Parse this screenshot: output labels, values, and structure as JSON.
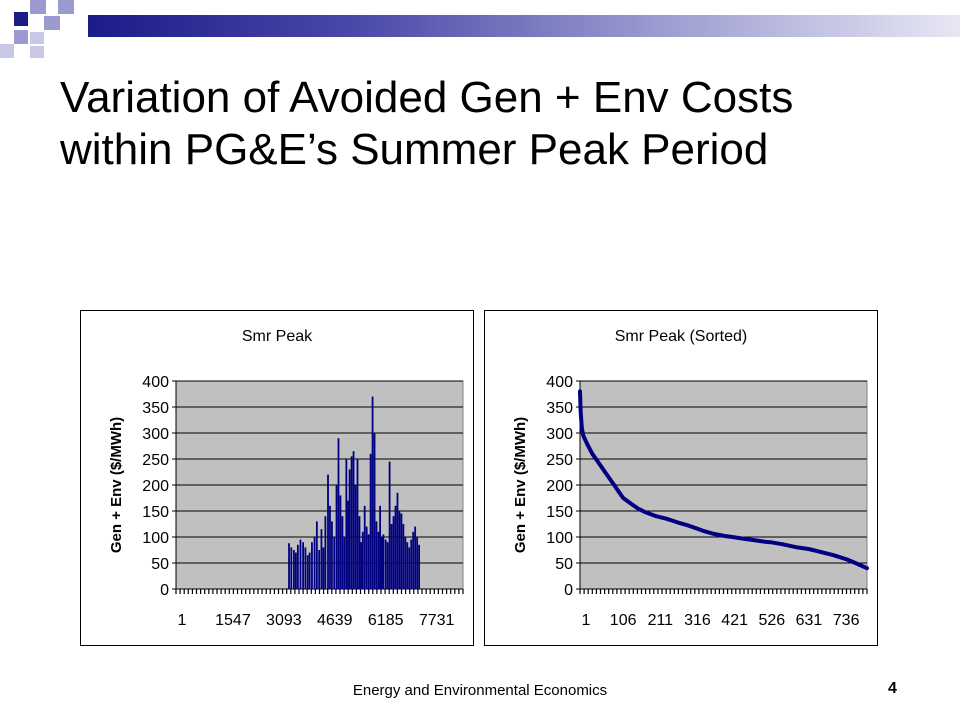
{
  "slide": {
    "title_line1": "Variation of Avoided Gen + Env Costs",
    "title_line2": "within PG&E’s Summer Peak Period",
    "footer": "Energy and Environmental Economics",
    "page_number": "4",
    "accent_dark": "#1b1b8a",
    "accent_light": "#9a9ad0"
  },
  "chart_data": [
    {
      "type": "bar",
      "title": "Smr Peak",
      "ylabel": "Gen + Env ($/MWh)",
      "xlabel": "",
      "ylim": [
        0,
        400
      ],
      "yticks": [
        0,
        50,
        100,
        150,
        200,
        250,
        300,
        350,
        400
      ],
      "xtick_labels": [
        "1",
        "1547",
        "3093",
        "4639",
        "6185",
        "7731"
      ],
      "x_range": [
        1,
        8760
      ],
      "grid": true,
      "plot_bg": "#c0c0c0",
      "bar_color": "#000080",
      "x": [
        3450,
        3520,
        3600,
        3660,
        3720,
        3800,
        3880,
        3950,
        4020,
        4080,
        4150,
        4230,
        4300,
        4370,
        4440,
        4500,
        4560,
        4640,
        4700,
        4760,
        4830,
        4900,
        4960,
        5020,
        5080,
        5140,
        5200,
        5250,
        5300,
        5360,
        5420,
        5480,
        5540,
        5600,
        5650,
        5700,
        5760,
        5820,
        5880,
        5940,
        6000,
        6060,
        6120,
        6180,
        6230,
        6280,
        6330,
        6400,
        6460,
        6520,
        6580,
        6640,
        6700,
        6760,
        6820,
        6880,
        6940,
        7000,
        7060,
        7120,
        7180,
        7240,
        7300,
        7360,
        7420
      ],
      "values": [
        88,
        80,
        75,
        70,
        85,
        95,
        90,
        80,
        65,
        70,
        90,
        100,
        130,
        75,
        115,
        80,
        140,
        220,
        160,
        130,
        100,
        200,
        290,
        180,
        140,
        100,
        250,
        170,
        230,
        255,
        265,
        200,
        250,
        140,
        90,
        110,
        160,
        120,
        105,
        260,
        370,
        300,
        130,
        110,
        160,
        100,
        105,
        95,
        90,
        245,
        125,
        140,
        160,
        185,
        150,
        145,
        125,
        100,
        90,
        80,
        95,
        110,
        120,
        100,
        85
      ]
    },
    {
      "type": "line",
      "title": "Smr Peak (Sorted)",
      "ylabel": "Gen + Env ($/MWh)",
      "xlabel": "",
      "ylim": [
        0,
        400
      ],
      "yticks": [
        0,
        50,
        100,
        150,
        200,
        250,
        300,
        350,
        400
      ],
      "xtick_labels": [
        "1",
        "106",
        "211",
        "316",
        "421",
        "526",
        "631",
        "736"
      ],
      "x_range": [
        1,
        792
      ],
      "grid": true,
      "plot_bg": "#c0c0c0",
      "line_color": "#000080",
      "x": [
        1,
        3,
        6,
        10,
        20,
        35,
        50,
        70,
        90,
        105,
        120,
        140,
        160,
        180,
        211,
        240,
        270,
        300,
        316,
        340,
        370,
        400,
        421,
        450,
        480,
        510,
        526,
        560,
        600,
        631,
        660,
        700,
        736,
        760,
        792
      ],
      "values": [
        380,
        340,
        310,
        295,
        280,
        260,
        245,
        225,
        205,
        190,
        175,
        165,
        155,
        148,
        140,
        135,
        128,
        122,
        118,
        112,
        106,
        102,
        100,
        97,
        94,
        91,
        90,
        86,
        80,
        77,
        72,
        65,
        57,
        50,
        40
      ]
    }
  ]
}
